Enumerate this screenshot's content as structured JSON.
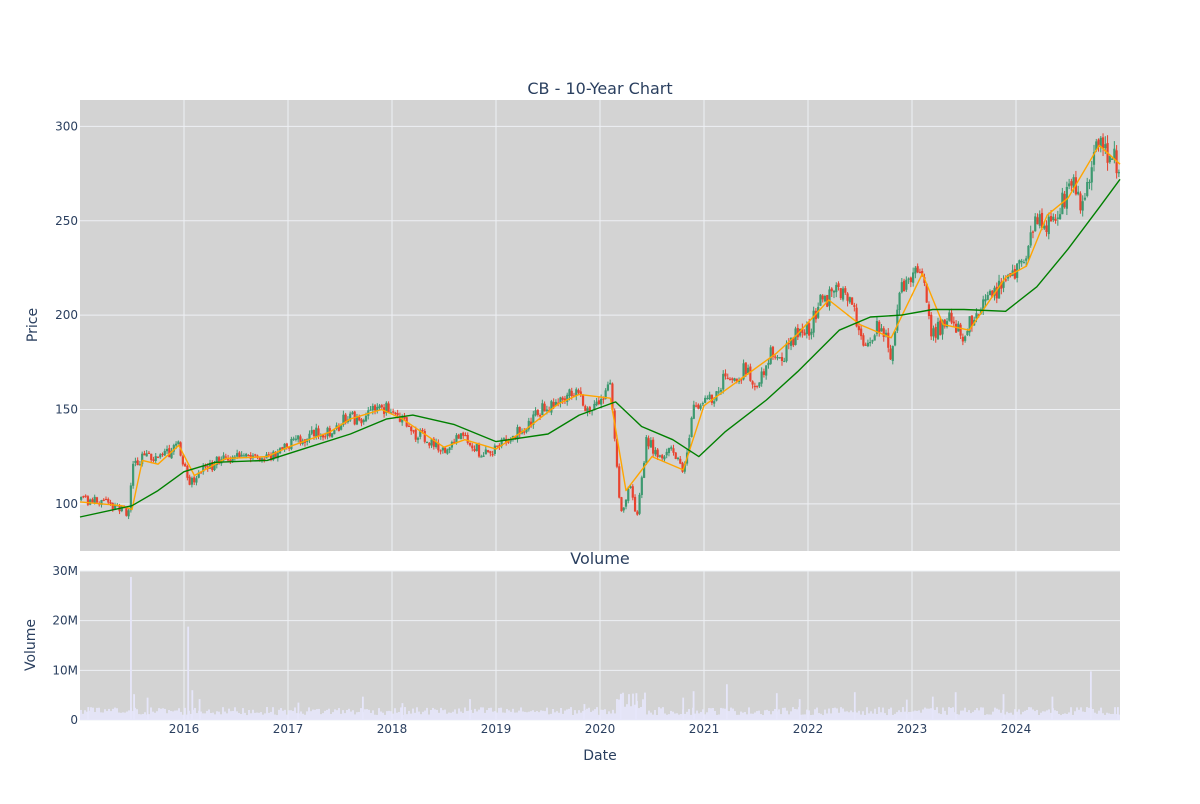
{
  "chart_data": [
    {
      "type": "candlestick",
      "title": "CB - 10-Year Chart",
      "ylabel": "Price",
      "ylim": [
        75,
        314
      ],
      "yticks": [
        100,
        150,
        200,
        250,
        300
      ],
      "xlim": [
        2015.0,
        2025.0
      ],
      "xticks": [
        {
          "value": 2016,
          "label": "2016"
        },
        {
          "value": 2017,
          "label": "2017"
        },
        {
          "value": 2018,
          "label": "2018"
        },
        {
          "value": 2019,
          "label": "2019"
        },
        {
          "value": 2020,
          "label": "2020"
        },
        {
          "value": 2021,
          "label": "2021"
        },
        {
          "value": 2022,
          "label": "2022"
        },
        {
          "value": 2023,
          "label": "2023"
        },
        {
          "value": 2024,
          "label": "2024"
        }
      ],
      "grid": true,
      "colors": {
        "up": "#3d9970",
        "down": "#e8432f",
        "ma_short": "#ffa500",
        "ma_long": "#008000",
        "panel": "#d3d3d3",
        "grid": "#eef0f4"
      },
      "price_path": [
        {
          "x": 2015.0,
          "y": 102
        },
        {
          "x": 2015.2,
          "y": 101
        },
        {
          "x": 2015.4,
          "y": 98
        },
        {
          "x": 2015.47,
          "y": 95
        },
        {
          "x": 2015.5,
          "y": 121
        },
        {
          "x": 2015.6,
          "y": 124
        },
        {
          "x": 2015.8,
          "y": 125
        },
        {
          "x": 2015.95,
          "y": 132
        },
        {
          "x": 2016.05,
          "y": 110
        },
        {
          "x": 2016.2,
          "y": 118
        },
        {
          "x": 2016.4,
          "y": 125
        },
        {
          "x": 2016.6,
          "y": 127
        },
        {
          "x": 2016.8,
          "y": 125
        },
        {
          "x": 2017.0,
          "y": 130
        },
        {
          "x": 2017.2,
          "y": 137
        },
        {
          "x": 2017.4,
          "y": 139
        },
        {
          "x": 2017.6,
          "y": 146
        },
        {
          "x": 2017.75,
          "y": 144
        },
        {
          "x": 2017.85,
          "y": 153
        },
        {
          "x": 2018.0,
          "y": 149
        },
        {
          "x": 2018.2,
          "y": 138
        },
        {
          "x": 2018.4,
          "y": 133
        },
        {
          "x": 2018.5,
          "y": 128
        },
        {
          "x": 2018.65,
          "y": 137
        },
        {
          "x": 2018.85,
          "y": 127
        },
        {
          "x": 2019.0,
          "y": 130
        },
        {
          "x": 2019.2,
          "y": 137
        },
        {
          "x": 2019.4,
          "y": 148
        },
        {
          "x": 2019.6,
          "y": 155
        },
        {
          "x": 2019.75,
          "y": 160
        },
        {
          "x": 2019.85,
          "y": 151
        },
        {
          "x": 2020.0,
          "y": 155
        },
        {
          "x": 2020.1,
          "y": 162
        },
        {
          "x": 2020.2,
          "y": 95
        },
        {
          "x": 2020.3,
          "y": 110
        },
        {
          "x": 2020.35,
          "y": 93
        },
        {
          "x": 2020.45,
          "y": 135
        },
        {
          "x": 2020.55,
          "y": 126
        },
        {
          "x": 2020.7,
          "y": 128
        },
        {
          "x": 2020.8,
          "y": 115
        },
        {
          "x": 2020.9,
          "y": 152
        },
        {
          "x": 2021.0,
          "y": 155
        },
        {
          "x": 2021.1,
          "y": 154
        },
        {
          "x": 2021.2,
          "y": 168
        },
        {
          "x": 2021.3,
          "y": 165
        },
        {
          "x": 2021.4,
          "y": 172
        },
        {
          "x": 2021.5,
          "y": 160
        },
        {
          "x": 2021.65,
          "y": 183
        },
        {
          "x": 2021.75,
          "y": 176
        },
        {
          "x": 2021.9,
          "y": 193
        },
        {
          "x": 2022.0,
          "y": 191
        },
        {
          "x": 2022.1,
          "y": 205
        },
        {
          "x": 2022.25,
          "y": 213
        },
        {
          "x": 2022.4,
          "y": 206
        },
        {
          "x": 2022.55,
          "y": 186
        },
        {
          "x": 2022.7,
          "y": 195
        },
        {
          "x": 2022.8,
          "y": 180
        },
        {
          "x": 2022.9,
          "y": 215
        },
        {
          "x": 2023.0,
          "y": 218
        },
        {
          "x": 2023.08,
          "y": 226
        },
        {
          "x": 2023.2,
          "y": 188
        },
        {
          "x": 2023.35,
          "y": 200
        },
        {
          "x": 2023.5,
          "y": 190
        },
        {
          "x": 2023.65,
          "y": 203
        },
        {
          "x": 2023.8,
          "y": 212
        },
        {
          "x": 2024.0,
          "y": 224
        },
        {
          "x": 2024.1,
          "y": 230
        },
        {
          "x": 2024.2,
          "y": 252
        },
        {
          "x": 2024.3,
          "y": 248
        },
        {
          "x": 2024.45,
          "y": 262
        },
        {
          "x": 2024.55,
          "y": 270
        },
        {
          "x": 2024.65,
          "y": 258
        },
        {
          "x": 2024.75,
          "y": 287
        },
        {
          "x": 2024.82,
          "y": 294
        },
        {
          "x": 2024.9,
          "y": 285
        },
        {
          "x": 2025.0,
          "y": 277
        }
      ],
      "series": [
        {
          "values": [
            {
              "x": 2015.0,
              "y": 101
            },
            {
              "x": 2015.4,
              "y": 99
            },
            {
              "x": 2015.5,
              "y": 97
            },
            {
              "x": 2015.6,
              "y": 123
            },
            {
              "x": 2015.75,
              "y": 121
            },
            {
              "x": 2015.95,
              "y": 131
            },
            {
              "x": 2016.1,
              "y": 115
            },
            {
              "x": 2016.4,
              "y": 124
            },
            {
              "x": 2016.8,
              "y": 125
            },
            {
              "x": 2017.0,
              "y": 130
            },
            {
              "x": 2017.4,
              "y": 138
            },
            {
              "x": 2017.6,
              "y": 145
            },
            {
              "x": 2017.9,
              "y": 150
            },
            {
              "x": 2018.1,
              "y": 145
            },
            {
              "x": 2018.5,
              "y": 130
            },
            {
              "x": 2018.7,
              "y": 134
            },
            {
              "x": 2019.0,
              "y": 129
            },
            {
              "x": 2019.3,
              "y": 140
            },
            {
              "x": 2019.6,
              "y": 153
            },
            {
              "x": 2019.8,
              "y": 158
            },
            {
              "x": 2020.1,
              "y": 156
            },
            {
              "x": 2020.25,
              "y": 107
            },
            {
              "x": 2020.5,
              "y": 125
            },
            {
              "x": 2020.8,
              "y": 118
            },
            {
              "x": 2021.0,
              "y": 152
            },
            {
              "x": 2021.4,
              "y": 168
            },
            {
              "x": 2021.7,
              "y": 180
            },
            {
              "x": 2021.9,
              "y": 190
            },
            {
              "x": 2022.2,
              "y": 208
            },
            {
              "x": 2022.5,
              "y": 195
            },
            {
              "x": 2022.8,
              "y": 188
            },
            {
              "x": 2023.1,
              "y": 222
            },
            {
              "x": 2023.3,
              "y": 195
            },
            {
              "x": 2023.55,
              "y": 192
            },
            {
              "x": 2023.9,
              "y": 220
            },
            {
              "x": 2024.1,
              "y": 226
            },
            {
              "x": 2024.3,
              "y": 253
            },
            {
              "x": 2024.5,
              "y": 262
            },
            {
              "x": 2024.8,
              "y": 290
            },
            {
              "x": 2025.0,
              "y": 280
            }
          ]
        },
        {
          "values": [
            {
              "x": 2015.0,
              "y": 93
            },
            {
              "x": 2015.5,
              "y": 99
            },
            {
              "x": 2015.75,
              "y": 107
            },
            {
              "x": 2016.0,
              "y": 117
            },
            {
              "x": 2016.3,
              "y": 122
            },
            {
              "x": 2016.8,
              "y": 123
            },
            {
              "x": 2017.2,
              "y": 130
            },
            {
              "x": 2017.6,
              "y": 137
            },
            {
              "x": 2017.95,
              "y": 145
            },
            {
              "x": 2018.2,
              "y": 147
            },
            {
              "x": 2018.6,
              "y": 142
            },
            {
              "x": 2019.0,
              "y": 133
            },
            {
              "x": 2019.5,
              "y": 137
            },
            {
              "x": 2019.8,
              "y": 147
            },
            {
              "x": 2020.15,
              "y": 154
            },
            {
              "x": 2020.4,
              "y": 141
            },
            {
              "x": 2020.7,
              "y": 134
            },
            {
              "x": 2020.95,
              "y": 125
            },
            {
              "x": 2021.2,
              "y": 138
            },
            {
              "x": 2021.6,
              "y": 155
            },
            {
              "x": 2021.9,
              "y": 170
            },
            {
              "x": 2022.3,
              "y": 192
            },
            {
              "x": 2022.6,
              "y": 199
            },
            {
              "x": 2022.9,
              "y": 200
            },
            {
              "x": 2023.2,
              "y": 203
            },
            {
              "x": 2023.5,
              "y": 203
            },
            {
              "x": 2023.9,
              "y": 202
            },
            {
              "x": 2024.2,
              "y": 215
            },
            {
              "x": 2024.5,
              "y": 235
            },
            {
              "x": 2024.8,
              "y": 257
            },
            {
              "x": 2025.0,
              "y": 272
            }
          ]
        }
      ]
    },
    {
      "type": "bar",
      "title": "Volume",
      "xlabel": "Date",
      "ylabel": "Volume",
      "ylim": [
        0,
        30000000
      ],
      "yticks": [
        {
          "value": 0,
          "label": "0"
        },
        {
          "value": 10000000,
          "label": "10M"
        },
        {
          "value": 20000000,
          "label": "20M"
        },
        {
          "value": 30000000,
          "label": "30M"
        }
      ],
      "colors": {
        "bar": "#e6e6fa"
      },
      "baseline_volume": 1800000,
      "spikes": [
        {
          "x": 2015.08,
          "y": 2600000
        },
        {
          "x": 2015.49,
          "y": 28800000
        },
        {
          "x": 2015.52,
          "y": 5200000
        },
        {
          "x": 2015.65,
          "y": 4500000
        },
        {
          "x": 2016.04,
          "y": 18800000
        },
        {
          "x": 2016.08,
          "y": 6000000
        },
        {
          "x": 2016.15,
          "y": 4200000
        },
        {
          "x": 2017.1,
          "y": 3500000
        },
        {
          "x": 2017.72,
          "y": 4700000
        },
        {
          "x": 2018.1,
          "y": 3400000
        },
        {
          "x": 2018.75,
          "y": 4200000
        },
        {
          "x": 2019.85,
          "y": 3200000
        },
        {
          "x": 2020.2,
          "y": 5200000
        },
        {
          "x": 2020.35,
          "y": 5400000
        },
        {
          "x": 2020.8,
          "y": 4500000
        },
        {
          "x": 2020.9,
          "y": 5800000
        },
        {
          "x": 2021.22,
          "y": 7200000
        },
        {
          "x": 2021.7,
          "y": 5400000
        },
        {
          "x": 2021.92,
          "y": 4200000
        },
        {
          "x": 2022.45,
          "y": 5600000
        },
        {
          "x": 2022.95,
          "y": 4100000
        },
        {
          "x": 2023.2,
          "y": 4700000
        },
        {
          "x": 2023.42,
          "y": 5600000
        },
        {
          "x": 2023.88,
          "y": 5200000
        },
        {
          "x": 2024.35,
          "y": 4700000
        },
        {
          "x": 2024.72,
          "y": 9800000
        },
        {
          "x": 2024.98,
          "y": 2600000
        }
      ]
    }
  ]
}
